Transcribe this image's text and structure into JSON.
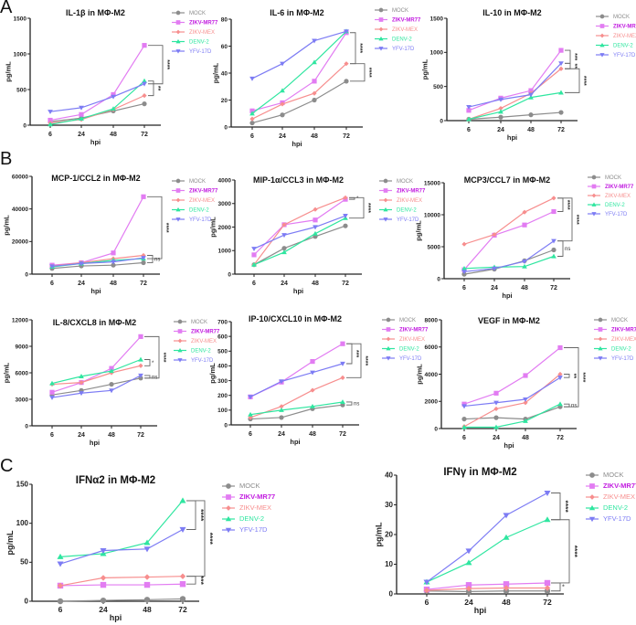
{
  "panel_labels": [
    "A",
    "B",
    "C"
  ],
  "colors": {
    "MOCK": "#8c8c8c",
    "ZIKV-MR77": "#e27cf2",
    "ZIKV-MEX": "#f78e8e",
    "DENV-2": "#2fe6a0",
    "YFV-17D": "#7d7cf4",
    "ZIKV-MR77-text": "#c21de0",
    "axis": "#222222"
  },
  "markers": {
    "MOCK": "circle",
    "ZIKV-MR77": "square",
    "ZIKV-MEX": "diamond",
    "DENV-2": "triangle-up",
    "YFV-17D": "triangle-down"
  },
  "chart_data": [
    {
      "type": "line",
      "title": "IL-1β in MΦ-M2",
      "xlabel": "hpi",
      "ylabel": "pg/mL",
      "x": [
        6,
        24,
        48,
        72
      ],
      "ylim": [
        0,
        1500
      ],
      "yticks": [
        0,
        500,
        1000,
        1500
      ],
      "series": [
        {
          "name": "MOCK",
          "values": [
            50,
            100,
            200,
            300
          ]
        },
        {
          "name": "ZIKV-MR77",
          "values": [
            70,
            150,
            430,
            1120
          ]
        },
        {
          "name": "ZIKV-MEX",
          "values": [
            30,
            80,
            220,
            415
          ]
        },
        {
          "name": "DENV-2",
          "values": [
            10,
            90,
            230,
            620
          ]
        },
        {
          "name": "YFV-17D",
          "values": [
            190,
            245,
            400,
            580
          ]
        }
      ],
      "significance": [
        {
          "label": "****",
          "from": "ZIKV-MR77",
          "to": "YFV-17D",
          "level": 1
        },
        {
          "label": "**",
          "from": "DENV-2",
          "to": "ZIKV-MEX",
          "level": 0
        }
      ]
    },
    {
      "type": "line",
      "title": "IL-6 in MΦ-M2",
      "xlabel": "hpi",
      "ylabel": "pg/mL",
      "x": [
        6,
        24,
        48,
        72
      ],
      "ylim": [
        0,
        80
      ],
      "yticks": [
        0,
        20,
        40,
        60,
        80
      ],
      "series": [
        {
          "name": "MOCK",
          "values": [
            3,
            9,
            20,
            34
          ]
        },
        {
          "name": "ZIKV-MR77",
          "values": [
            12,
            18,
            34,
            70
          ]
        },
        {
          "name": "ZIKV-MEX",
          "values": [
            6,
            17,
            25,
            47
          ]
        },
        {
          "name": "DENV-2",
          "values": [
            10,
            27,
            48,
            71
          ]
        },
        {
          "name": "YFV-17D",
          "values": [
            36,
            47,
            64,
            71
          ]
        }
      ],
      "significance": [
        {
          "label": "****",
          "from": "ZIKV-MR77",
          "to": "ZIKV-MEX",
          "level": 0
        },
        {
          "label": "****",
          "from": "ZIKV-MEX",
          "to": "MOCK",
          "level": 1
        }
      ]
    },
    {
      "type": "line",
      "title": "IL-10 in MΦ-M2",
      "xlabel": "hpi",
      "ylabel": "pg/mL",
      "x": [
        6,
        24,
        48,
        72
      ],
      "ylim": [
        0,
        1500
      ],
      "yticks": [
        0,
        500,
        1000,
        1500
      ],
      "series": [
        {
          "name": "MOCK",
          "values": [
            20,
            50,
            85,
            120
          ]
        },
        {
          "name": "ZIKV-MR77",
          "values": [
            150,
            330,
            440,
            1030
          ]
        },
        {
          "name": "ZIKV-MEX",
          "values": [
            20,
            180,
            400,
            760
          ]
        },
        {
          "name": "DENV-2",
          "values": [
            20,
            130,
            340,
            410
          ]
        },
        {
          "name": "YFV-17D",
          "values": [
            200,
            310,
            380,
            840
          ]
        }
      ],
      "significance": [
        {
          "label": "***",
          "from": "ZIKV-MR77",
          "to": "YFV-17D",
          "level": 0
        },
        {
          "label": "**",
          "from": "YFV-17D",
          "to": "ZIKV-MEX",
          "level": 0
        },
        {
          "label": "****",
          "from": "ZIKV-MEX",
          "to": "DENV-2",
          "level": 1
        }
      ]
    },
    {
      "type": "line",
      "title": "MCP-1/CCL2 in MΦ-M2",
      "xlabel": "hpi",
      "ylabel": "pg/mL",
      "x": [
        6,
        24,
        48,
        72
      ],
      "ylim": [
        0,
        60000
      ],
      "yticks": [
        0,
        20000,
        40000,
        60000
      ],
      "series": [
        {
          "name": "MOCK",
          "values": [
            3500,
            5000,
            5500,
            7000
          ]
        },
        {
          "name": "ZIKV-MR77",
          "values": [
            5500,
            7000,
            13000,
            47500
          ]
        },
        {
          "name": "ZIKV-MEX",
          "values": [
            5000,
            7000,
            9500,
            11500
          ]
        },
        {
          "name": "DENV-2",
          "values": [
            4500,
            6500,
            8500,
            9500
          ]
        },
        {
          "name": "YFV-17D",
          "values": [
            4800,
            6500,
            7500,
            10000
          ]
        }
      ],
      "significance": [
        {
          "label": "****",
          "from": "ZIKV-MR77",
          "to": "DENV-2",
          "level": 1
        },
        {
          "label": "ns",
          "from": "ZIKV-MEX",
          "to": "MOCK",
          "level": 0
        }
      ]
    },
    {
      "type": "line",
      "title": "MIP-1α/CCL3 in MΦ-M2",
      "xlabel": "hpi",
      "ylabel": "pg/mL",
      "x": [
        6,
        24,
        48,
        72
      ],
      "ylim": [
        0,
        4000
      ],
      "yticks": [
        0,
        1000,
        2000,
        3000,
        4000
      ],
      "series": [
        {
          "name": "MOCK",
          "values": [
            400,
            1100,
            1600,
            2050
          ]
        },
        {
          "name": "ZIKV-MR77",
          "values": [
            820,
            2100,
            2300,
            3180
          ]
        },
        {
          "name": "ZIKV-MEX",
          "values": [
            400,
            2100,
            2750,
            3250
          ]
        },
        {
          "name": "DENV-2",
          "values": [
            400,
            930,
            1720,
            2380
          ]
        },
        {
          "name": "YFV-17D",
          "values": [
            1080,
            1660,
            2000,
            2480
          ]
        }
      ],
      "significance": [
        {
          "label": "*",
          "from": "ZIKV-MEX",
          "to": "ZIKV-MR77",
          "level": 0
        },
        {
          "label": "****",
          "from": "ZIKV-MEX",
          "to": "DENV-2",
          "level": 1
        }
      ]
    },
    {
      "type": "line",
      "title": "MCP3/CCL7 in MΦ-M2",
      "xlabel": "hpi",
      "ylabel": "pg/mL",
      "x": [
        6,
        24,
        48,
        72
      ],
      "ylim": [
        0,
        15000
      ],
      "yticks": [
        0,
        5000,
        10000,
        15000
      ],
      "series": [
        {
          "name": "MOCK",
          "values": [
            700,
            1500,
            2800,
            4500
          ]
        },
        {
          "name": "ZIKV-MR77",
          "values": [
            1400,
            6800,
            8400,
            10500
          ]
        },
        {
          "name": "ZIKV-MEX",
          "values": [
            5400,
            6900,
            10400,
            12600
          ]
        },
        {
          "name": "DENV-2",
          "values": [
            1600,
            1800,
            1900,
            3500
          ]
        },
        {
          "name": "YFV-17D",
          "values": [
            1100,
            1600,
            2700,
            5900
          ]
        }
      ],
      "significance": [
        {
          "label": "****",
          "from": "ZIKV-MEX",
          "to": "ZIKV-MR77",
          "level": 0
        },
        {
          "label": "****",
          "from": "ZIKV-MEX",
          "to": "YFV-17D",
          "level": 1
        },
        {
          "label": "ns",
          "from": "YFV-17D",
          "to": "DENV-2",
          "level": 0
        }
      ]
    },
    {
      "type": "line",
      "title": "IL-8/CXCL8 in MΦ-M2",
      "xlabel": "hpi",
      "ylabel": "pg/mL",
      "x": [
        6,
        24,
        48,
        72
      ],
      "ylim": [
        0,
        12000
      ],
      "yticks": [
        0,
        3000,
        6000,
        9000,
        12000
      ],
      "series": [
        {
          "name": "MOCK",
          "values": [
            3500,
            4000,
            4700,
            5400
          ]
        },
        {
          "name": "ZIKV-MR77",
          "values": [
            3800,
            4900,
            6500,
            10100
          ]
        },
        {
          "name": "ZIKV-MEX",
          "values": [
            4700,
            4900,
            6000,
            6800
          ]
        },
        {
          "name": "DENV-2",
          "values": [
            4800,
            5600,
            6200,
            7500
          ]
        },
        {
          "name": "YFV-17D",
          "values": [
            3200,
            3700,
            4000,
            5700
          ]
        }
      ],
      "significance": [
        {
          "label": "****",
          "from": "ZIKV-MR77",
          "to": "MOCK",
          "level": 1
        },
        {
          "label": "*",
          "from": "DENV-2",
          "to": "ZIKV-MEX",
          "level": 0
        },
        {
          "label": "ns",
          "from": "YFV-17D",
          "to": "MOCK",
          "level": 0
        }
      ]
    },
    {
      "type": "line",
      "title": "IP-10/CXCL10 in MΦ-M2",
      "xlabel": "hpi",
      "ylabel": "pg/mL",
      "x": [
        6,
        24,
        48,
        72
      ],
      "ylim": [
        0,
        700
      ],
      "yticks": [
        0,
        100,
        200,
        300,
        400,
        500,
        600,
        700
      ],
      "series": [
        {
          "name": "MOCK",
          "values": [
            40,
            50,
            110,
            135
          ]
        },
        {
          "name": "ZIKV-MR77",
          "values": [
            190,
            290,
            430,
            550
          ]
        },
        {
          "name": "ZIKV-MEX",
          "values": [
            50,
            125,
            235,
            320
          ]
        },
        {
          "name": "DENV-2",
          "values": [
            70,
            100,
            125,
            155
          ]
        },
        {
          "name": "YFV-17D",
          "values": [
            190,
            295,
            355,
            415
          ]
        }
      ],
      "significance": [
        {
          "label": "***",
          "from": "ZIKV-MR77",
          "to": "YFV-17D",
          "level": 0
        },
        {
          "label": "****",
          "from": "ZIKV-MR77",
          "to": "ZIKV-MEX",
          "level": 1
        },
        {
          "label": "ns",
          "from": "DENV-2",
          "to": "MOCK",
          "level": 0
        }
      ]
    },
    {
      "type": "line",
      "title": "VEGF in MΦ-M2",
      "xlabel": "hpi",
      "ylabel": "pg/mL",
      "x": [
        6,
        24,
        48,
        72
      ],
      "ylim": [
        0,
        8000
      ],
      "yticks": [
        0,
        2000,
        4000,
        6000,
        8000
      ],
      "series": [
        {
          "name": "MOCK",
          "values": [
            700,
            800,
            700,
            1600
          ]
        },
        {
          "name": "ZIKV-MR77",
          "values": [
            1800,
            2600,
            3900,
            5950
          ]
        },
        {
          "name": "ZIKV-MEX",
          "values": [
            150,
            1450,
            1900,
            4000
          ]
        },
        {
          "name": "DENV-2",
          "values": [
            100,
            100,
            550,
            1800
          ]
        },
        {
          "name": "YFV-17D",
          "values": [
            1650,
            1900,
            2150,
            3750
          ]
        }
      ],
      "significance": [
        {
          "label": "**",
          "from": "ZIKV-MEX",
          "to": "YFV-17D",
          "level": 0
        },
        {
          "label": "****",
          "from": "ZIKV-MR77",
          "to": "MOCK",
          "level": 1
        },
        {
          "label": "ns",
          "from": "DENV-2",
          "to": "MOCK",
          "level": 0
        }
      ]
    },
    {
      "type": "line",
      "title": "IFNα2 in MΦ-M2",
      "xlabel": "hpi",
      "ylabel": "pg/mL",
      "x": [
        6,
        24,
        48,
        72
      ],
      "ylim": [
        0,
        150
      ],
      "yticks": [
        0,
        50,
        100,
        150
      ],
      "series": [
        {
          "name": "MOCK",
          "values": [
            0,
            1,
            2,
            3
          ]
        },
        {
          "name": "ZIKV-MR77",
          "values": [
            20,
            21,
            21,
            22
          ]
        },
        {
          "name": "ZIKV-MEX",
          "values": [
            20,
            30,
            31,
            32
          ]
        },
        {
          "name": "DENV-2",
          "values": [
            57,
            61,
            75,
            129
          ]
        },
        {
          "name": "YFV-17D",
          "values": [
            48,
            65,
            67,
            92
          ]
        }
      ],
      "significance": [
        {
          "label": "****",
          "from": "DENV-2",
          "to": "YFV-17D",
          "level": 0
        },
        {
          "label": "****",
          "from": "DENV-2",
          "to": "ZIKV-MEX",
          "level": 1
        },
        {
          "label": "***",
          "from": "ZIKV-MEX",
          "to": "ZIKV-MR77",
          "level": 0
        }
      ]
    },
    {
      "type": "line",
      "title": "IFNγ in MΦ-M2",
      "xlabel": "hpi",
      "ylabel": "pg/mL",
      "x": [
        6,
        24,
        48,
        72
      ],
      "ylim": [
        0,
        40
      ],
      "yticks": [
        0,
        10,
        20,
        30,
        40
      ],
      "series": [
        {
          "name": "MOCK",
          "values": [
            1,
            0.8,
            1,
            1
          ]
        },
        {
          "name": "ZIKV-MR77",
          "values": [
            1.5,
            3,
            3.3,
            3.7
          ]
        },
        {
          "name": "ZIKV-MEX",
          "values": [
            1.2,
            1.8,
            2,
            2
          ]
        },
        {
          "name": "DENV-2",
          "values": [
            4,
            10.5,
            19,
            25
          ]
        },
        {
          "name": "YFV-17D",
          "values": [
            4,
            14.5,
            26.5,
            34
          ]
        }
      ],
      "significance": [
        {
          "label": "****",
          "from": "YFV-17D",
          "to": "DENV-2",
          "level": 0
        },
        {
          "label": "****",
          "from": "DENV-2",
          "to": "ZIKV-MR77",
          "level": 1
        },
        {
          "label": "*",
          "from": "ZIKV-MR77",
          "to": "MOCK",
          "level": 0
        }
      ]
    }
  ]
}
